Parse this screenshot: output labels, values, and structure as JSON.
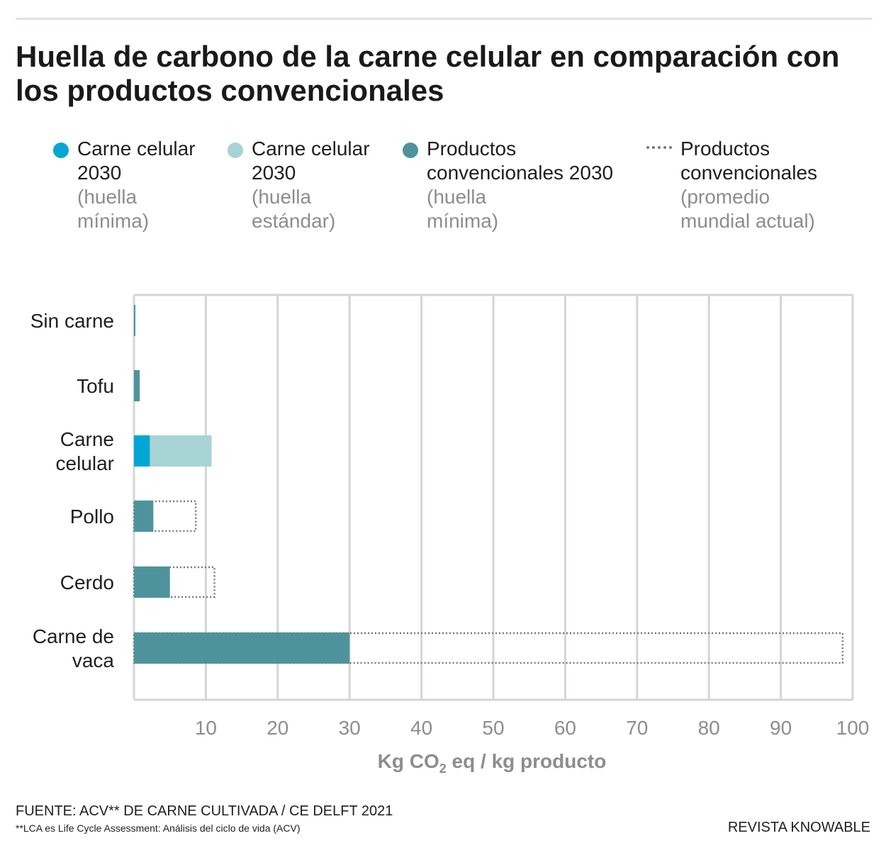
{
  "title": "Huella de carbono de la carne celular en comparación con los productos convencionales",
  "legend": [
    {
      "main": "Carne celular 2030",
      "sub": "(huella mínima)",
      "color": "#00a7d4",
      "icon": "filled-circle"
    },
    {
      "main": "Carne celular 2030",
      "sub": "(huella estándar)",
      "color": "#a8d3d4",
      "icon": "filled-circle"
    },
    {
      "main": "Productos convencionales 2030",
      "sub": "(huella mínima)",
      "color": "#4e939c",
      "icon": "filled-circle"
    },
    {
      "main": "Productos convencionales",
      "sub": "(promedio mundial actual)",
      "color": "#777777",
      "icon": "dotted-line"
    }
  ],
  "chart_data": {
    "type": "bar",
    "orientation": "horizontal",
    "categories": [
      "Sin carne",
      "Tofu",
      "Carne celular",
      "Pollo",
      "Cerdo",
      "Carne de vaca"
    ],
    "series": [
      {
        "name": "Productos convencionales 2030 (huella mínima)",
        "values": [
          0.1,
          0.8,
          null,
          2.7,
          5.0,
          30.0
        ],
        "color": "#4e939c"
      },
      {
        "name": "Carne celular 2030 (huella mínima)",
        "values": [
          null,
          null,
          2.2,
          null,
          null,
          null
        ],
        "color": "#00a7d4"
      },
      {
        "name": "Carne celular 2030 (huella estándar)",
        "values": [
          null,
          null,
          10.8,
          null,
          null,
          null
        ],
        "color": "#a8d3d4"
      },
      {
        "name": "Productos convencionales (promedio mundial actual)",
        "values": [
          null,
          null,
          null,
          8.6,
          11.2,
          98.6
        ],
        "color": "#777777",
        "style": "dotted-outline"
      }
    ],
    "xlim": [
      0,
      100
    ],
    "xticks": [
      10,
      20,
      30,
      40,
      50,
      60,
      70,
      80,
      90,
      100
    ],
    "xlabel": {
      "prefix": "Kg CO",
      "subscript": "2",
      "suffix": " eq / kg producto"
    },
    "grid": true
  },
  "source": "FUENTE: ACV** DE CARNE CULTIVADA / CE DELFT 2021",
  "footnote": "**LCA es Life Cycle Assessment: Análisis del ciclo de vida (ACV)",
  "brand": "REVISTA KNOWABLE"
}
